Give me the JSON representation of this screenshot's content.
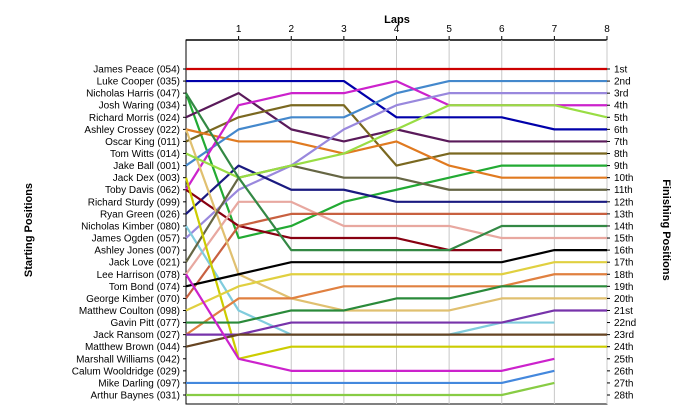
{
  "chart_data": {
    "type": "line",
    "xlabel": "Laps",
    "ylabel_left": "Starting Positions",
    "ylabel_right": "Finishing Positions",
    "x_ticks": [
      1,
      2,
      3,
      4,
      5,
      6,
      7,
      8
    ],
    "xlim": [
      0,
      8
    ],
    "drivers": [
      "James Peace (054)",
      "Luke Cooper (035)",
      "Nicholas Harris (047)",
      "Josh Waring (034)",
      "Richard Morris (024)",
      "Ashley Crossey (022)",
      "Oscar King (011)",
      "Tom Witts (014)",
      "Jake Ball (001)",
      "Jack Dex (003)",
      "Toby Davis (062)",
      "Richard Sturdy (099)",
      "Ryan Green (026)",
      "Nicholas Kimber (080)",
      "James Ogden (057)",
      "Ashley Jones (007)",
      "Jack Love (021)",
      "Lee Harrison (078)",
      "Tom Bond (074)",
      "George Kimber (070)",
      "Matthew Coulton (098)",
      "Gavin Pitt (077)",
      "Jack Ransom (027)",
      "Matthew Brown (044)",
      "Marshall Williams (042)",
      "Calum Wooldridge (029)",
      "Mike Darling (097)",
      "Arthur Baynes (031)"
    ],
    "finishing_positions": [
      "1st",
      "2nd",
      "3rd",
      "4th",
      "5th",
      "6th",
      "7th",
      "8th",
      "9th",
      "10th",
      "11th",
      "12th",
      "13th",
      "14th",
      "15th",
      "16th",
      "17th",
      "18th",
      "19th",
      "20th",
      "21st",
      "22nd",
      "23rd",
      "24th",
      "25th",
      "26th",
      "27th",
      "28th"
    ],
    "series": [
      {
        "color": "#cc0000",
        "positions": [
          1,
          1,
          1,
          1,
          1,
          1,
          1,
          1,
          1
        ]
      },
      {
        "color": "#0000aa",
        "positions": [
          2,
          2,
          2,
          2,
          5,
          5,
          5,
          6,
          6
        ]
      },
      {
        "color": "#22aa33",
        "positions": [
          3,
          15,
          14,
          12,
          11,
          10,
          9,
          9,
          9
        ]
      },
      {
        "color": "#5a1a5a",
        "positions": [
          5,
          3,
          6,
          7,
          6,
          7,
          7,
          7,
          7
        ]
      },
      {
        "color": "#7a6820",
        "positions": [
          7,
          5,
          4,
          4,
          9,
          8,
          8,
          8,
          8
        ]
      },
      {
        "color": "#e07a20",
        "positions": [
          6,
          7,
          7,
          8,
          7,
          9,
          10,
          10,
          10
        ]
      },
      {
        "color": "#4488cc",
        "positions": [
          9,
          6,
          5,
          5,
          3,
          2,
          2,
          2,
          2
        ]
      },
      {
        "color": "#cc22cc",
        "positions": [
          11,
          4,
          3,
          3,
          2,
          4,
          4,
          4,
          4
        ]
      },
      {
        "color": "#9988dd",
        "positions": [
          15,
          11,
          9,
          6,
          4,
          3,
          3,
          3,
          3
        ]
      },
      {
        "color": "#1a1a80",
        "positions": [
          13,
          9,
          11,
          11,
          12,
          12,
          12,
          12,
          12
        ]
      },
      {
        "color": "#880011",
        "positions": [
          11,
          14,
          15,
          15,
          15,
          16,
          16
        ]
      },
      {
        "color": "#e8a8a0",
        "positions": [
          18,
          12,
          12,
          14,
          14,
          14,
          15,
          15,
          15
        ]
      },
      {
        "color": "#c86040",
        "positions": [
          20,
          14,
          13,
          13,
          13,
          13,
          13,
          13,
          13
        ]
      },
      {
        "color": "#e0c070",
        "positions": [
          6,
          18,
          20,
          21,
          21,
          21,
          20,
          20,
          20
        ]
      },
      {
        "color": "#80ccdd",
        "positions": [
          14,
          21,
          23,
          23,
          23,
          23,
          22,
          22
        ]
      },
      {
        "color": "#666644",
        "positions": [
          17,
          10,
          9,
          10,
          10,
          11,
          11,
          11,
          11
        ]
      },
      {
        "color": "#99dd44",
        "positions": [
          8,
          10,
          9,
          8,
          6,
          4,
          4,
          4,
          5
        ]
      },
      {
        "color": "#cccc00",
        "positions": [
          10,
          25,
          24,
          24,
          24,
          24,
          24,
          24,
          24
        ]
      },
      {
        "color": "#000000",
        "positions": [
          19,
          18,
          17,
          17,
          17,
          17,
          17,
          16,
          16
        ]
      },
      {
        "color": "#e0d040",
        "positions": [
          21,
          19,
          18,
          18,
          18,
          18,
          18,
          17,
          17
        ]
      },
      {
        "color": "#e08040",
        "positions": [
          23,
          20,
          20,
          19,
          19,
          19,
          19,
          18,
          18
        ]
      },
      {
        "color": "#2a8a3a",
        "positions": [
          22,
          22,
          21,
          21,
          20,
          20,
          19,
          19,
          19
        ]
      },
      {
        "color": "#7733aa",
        "positions": [
          23,
          23,
          22,
          22,
          22,
          22,
          22,
          21,
          21
        ]
      },
      {
        "color": "#664422",
        "positions": [
          24,
          23,
          23,
          23,
          23,
          23,
          23,
          23,
          23
        ]
      },
      {
        "color": "#cc22cc",
        "positions": [
          18,
          25,
          26,
          26,
          26,
          26,
          26,
          25
        ]
      },
      {
        "color": "#338844",
        "positions": [
          3,
          10,
          16,
          16,
          16,
          16,
          14,
          14,
          14
        ]
      },
      {
        "color": "#4488dd",
        "positions": [
          27,
          27,
          27,
          27,
          27,
          27,
          27,
          26
        ]
      },
      {
        "color": "#88cc44",
        "positions": [
          28,
          28,
          28,
          28,
          28,
          28,
          28,
          27
        ]
      }
    ]
  }
}
